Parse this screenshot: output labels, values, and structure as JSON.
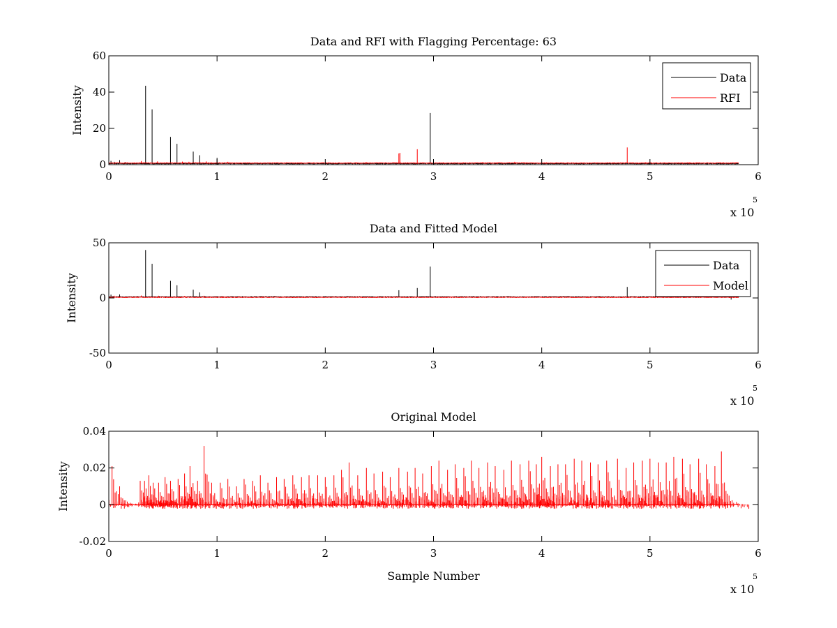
{
  "chart_data": [
    {
      "type": "line",
      "title": "Data and RFI with Flagging Percentage: 63",
      "xlabel": "",
      "ylabel": "Intensity",
      "xlim": [
        0,
        6
      ],
      "ylim": [
        0,
        60
      ],
      "x_ticks": [
        0,
        1,
        2,
        3,
        4,
        5,
        6
      ],
      "y_ticks": [
        0,
        20,
        40,
        60
      ],
      "x_multiplier": "x 10",
      "x_multiplier_exponent": "5",
      "legend_position": "top-right",
      "legend": [
        "Data",
        "RFI"
      ],
      "series": [
        {
          "name": "Data",
          "color": "#000000",
          "baseline": 0.6,
          "spikes": [
            {
              "x": 0.02,
              "y": 2.1
            },
            {
              "x": 0.05,
              "y": 1.6
            },
            {
              "x": 0.1,
              "y": 2.5
            },
            {
              "x": 0.15,
              "y": 1.4
            },
            {
              "x": 0.34,
              "y": 43.5
            },
            {
              "x": 0.4,
              "y": 30.5
            },
            {
              "x": 0.57,
              "y": 15.3
            },
            {
              "x": 0.63,
              "y": 11.5
            },
            {
              "x": 0.78,
              "y": 7.2
            },
            {
              "x": 0.84,
              "y": 5.2
            },
            {
              "x": 1.0,
              "y": 3.8
            },
            {
              "x": 2.97,
              "y": 28.5
            }
          ]
        },
        {
          "name": "RFI",
          "color": "#ff0000",
          "baseline": 0.9,
          "spikes": [
            {
              "x": 0.3,
              "y": 2.0
            },
            {
              "x": 0.45,
              "y": 1.8
            },
            {
              "x": 0.68,
              "y": 1.7
            },
            {
              "x": 0.74,
              "y": 1.6
            },
            {
              "x": 0.9,
              "y": 1.8
            },
            {
              "x": 1.1,
              "y": 1.6
            },
            {
              "x": 2.38,
              "y": 1.3
            },
            {
              "x": 2.68,
              "y": 6.2
            },
            {
              "x": 2.69,
              "y": 6.5
            },
            {
              "x": 2.85,
              "y": 8.5
            },
            {
              "x": 3.45,
              "y": 1.3
            },
            {
              "x": 3.75,
              "y": 1.6
            },
            {
              "x": 4.79,
              "y": 9.5
            }
          ]
        }
      ]
    },
    {
      "type": "line",
      "title": "Data and Fitted Model",
      "xlabel": "",
      "ylabel": "Intensity",
      "xlim": [
        0,
        6
      ],
      "ylim": [
        -50,
        50
      ],
      "x_ticks": [
        0,
        1,
        2,
        3,
        4,
        5,
        6
      ],
      "y_ticks": [
        -50,
        0,
        50
      ],
      "x_multiplier": "x 10",
      "x_multiplier_exponent": "5",
      "legend_position": "top-right",
      "legend": [
        "Data",
        "Model"
      ],
      "series": [
        {
          "name": "Data",
          "color": "#000000",
          "baseline": 1.0,
          "spikes": [
            {
              "x": 0.02,
              "y": 3.0
            },
            {
              "x": 0.1,
              "y": 3.2
            },
            {
              "x": 0.34,
              "y": 43.5
            },
            {
              "x": 0.4,
              "y": 31.0
            },
            {
              "x": 0.57,
              "y": 15.5
            },
            {
              "x": 0.63,
              "y": 11.5
            },
            {
              "x": 0.78,
              "y": 7.5
            },
            {
              "x": 0.84,
              "y": 5.0
            },
            {
              "x": 2.68,
              "y": 7.0
            },
            {
              "x": 2.85,
              "y": 9.0
            },
            {
              "x": 2.97,
              "y": 28.5
            },
            {
              "x": 4.79,
              "y": 10.0
            },
            {
              "x": 5.75,
              "y": -1.5
            }
          ]
        },
        {
          "name": "Model",
          "color": "#ff0000",
          "baseline": 0.6,
          "spikes": [
            {
              "x": 0.05,
              "y": 2.0
            },
            {
              "x": 0.3,
              "y": 2.2
            },
            {
              "x": 0.46,
              "y": 2.0
            },
            {
              "x": 0.7,
              "y": 1.8
            },
            {
              "x": 0.88,
              "y": 2.0
            },
            {
              "x": 1.05,
              "y": 1.5
            },
            {
              "x": 1.2,
              "y": 1.5
            }
          ]
        }
      ]
    },
    {
      "type": "line",
      "title": "Original Model",
      "xlabel": "Sample Number",
      "ylabel": "Intensity",
      "xlim": [
        0,
        6
      ],
      "ylim": [
        -0.02,
        0.04
      ],
      "x_ticks": [
        0,
        1,
        2,
        3,
        4,
        5,
        6
      ],
      "y_ticks": [
        -0.02,
        0,
        0.02,
        0.04
      ],
      "y_tick_labels": [
        "-0.02",
        "0",
        "0.02",
        "0.04"
      ],
      "x_multiplier": "x 10",
      "x_multiplier_exponent": "5",
      "series": [
        {
          "name": "Original Model",
          "color": "#ff0000",
          "baseline": 0,
          "x_end": 5.82,
          "spikes": [
            {
              "x": 0.03,
              "y": 0.021
            },
            {
              "x": 0.1,
              "y": 0.01
            },
            {
              "x": 0.29,
              "y": 0.013
            },
            {
              "x": 0.33,
              "y": 0.013
            },
            {
              "x": 0.37,
              "y": 0.016
            },
            {
              "x": 0.41,
              "y": 0.012
            },
            {
              "x": 0.46,
              "y": 0.012
            },
            {
              "x": 0.52,
              "y": 0.015
            },
            {
              "x": 0.57,
              "y": 0.013
            },
            {
              "x": 0.64,
              "y": 0.014
            },
            {
              "x": 0.7,
              "y": 0.017
            },
            {
              "x": 0.75,
              "y": 0.021
            },
            {
              "x": 0.82,
              "y": 0.013
            },
            {
              "x": 0.88,
              "y": 0.032
            },
            {
              "x": 0.95,
              "y": 0.012
            },
            {
              "x": 1.03,
              "y": 0.012
            },
            {
              "x": 1.1,
              "y": 0.014
            },
            {
              "x": 1.18,
              "y": 0.01
            },
            {
              "x": 1.25,
              "y": 0.014
            },
            {
              "x": 1.33,
              "y": 0.013
            },
            {
              "x": 1.4,
              "y": 0.016
            },
            {
              "x": 1.47,
              "y": 0.012
            },
            {
              "x": 1.55,
              "y": 0.015
            },
            {
              "x": 1.62,
              "y": 0.014
            },
            {
              "x": 1.7,
              "y": 0.016
            },
            {
              "x": 1.78,
              "y": 0.015
            },
            {
              "x": 1.85,
              "y": 0.016
            },
            {
              "x": 1.93,
              "y": 0.016
            },
            {
              "x": 2.0,
              "y": 0.015
            },
            {
              "x": 2.08,
              "y": 0.016
            },
            {
              "x": 2.15,
              "y": 0.019
            },
            {
              "x": 2.22,
              "y": 0.023
            },
            {
              "x": 2.3,
              "y": 0.016
            },
            {
              "x": 2.38,
              "y": 0.02
            },
            {
              "x": 2.45,
              "y": 0.017
            },
            {
              "x": 2.53,
              "y": 0.018
            },
            {
              "x": 2.6,
              "y": 0.015
            },
            {
              "x": 2.68,
              "y": 0.02
            },
            {
              "x": 2.76,
              "y": 0.018
            },
            {
              "x": 2.83,
              "y": 0.02
            },
            {
              "x": 2.9,
              "y": 0.017
            },
            {
              "x": 2.98,
              "y": 0.021
            },
            {
              "x": 3.05,
              "y": 0.024
            },
            {
              "x": 3.13,
              "y": 0.019
            },
            {
              "x": 3.2,
              "y": 0.022
            },
            {
              "x": 3.28,
              "y": 0.02
            },
            {
              "x": 3.35,
              "y": 0.024
            },
            {
              "x": 3.42,
              "y": 0.02
            },
            {
              "x": 3.5,
              "y": 0.023
            },
            {
              "x": 3.57,
              "y": 0.021
            },
            {
              "x": 3.65,
              "y": 0.019
            },
            {
              "x": 3.72,
              "y": 0.024
            },
            {
              "x": 3.8,
              "y": 0.022
            },
            {
              "x": 3.88,
              "y": 0.024
            },
            {
              "x": 3.95,
              "y": 0.022
            },
            {
              "x": 4.0,
              "y": 0.026
            },
            {
              "x": 4.08,
              "y": 0.021
            },
            {
              "x": 4.15,
              "y": 0.022
            },
            {
              "x": 4.22,
              "y": 0.022
            },
            {
              "x": 4.3,
              "y": 0.025
            },
            {
              "x": 4.37,
              "y": 0.024
            },
            {
              "x": 4.45,
              "y": 0.023
            },
            {
              "x": 4.52,
              "y": 0.022
            },
            {
              "x": 4.6,
              "y": 0.024
            },
            {
              "x": 4.7,
              "y": 0.025
            },
            {
              "x": 4.78,
              "y": 0.02
            },
            {
              "x": 4.85,
              "y": 0.023
            },
            {
              "x": 4.93,
              "y": 0.024
            },
            {
              "x": 5.0,
              "y": 0.025
            },
            {
              "x": 5.08,
              "y": 0.023
            },
            {
              "x": 5.15,
              "y": 0.023
            },
            {
              "x": 5.22,
              "y": 0.026
            },
            {
              "x": 5.3,
              "y": 0.025
            },
            {
              "x": 5.37,
              "y": 0.022
            },
            {
              "x": 5.45,
              "y": 0.025
            },
            {
              "x": 5.52,
              "y": 0.022
            },
            {
              "x": 5.6,
              "y": 0.021
            },
            {
              "x": 5.66,
              "y": 0.029
            },
            {
              "x": 5.8,
              "y": 0.0015
            }
          ]
        }
      ]
    }
  ]
}
